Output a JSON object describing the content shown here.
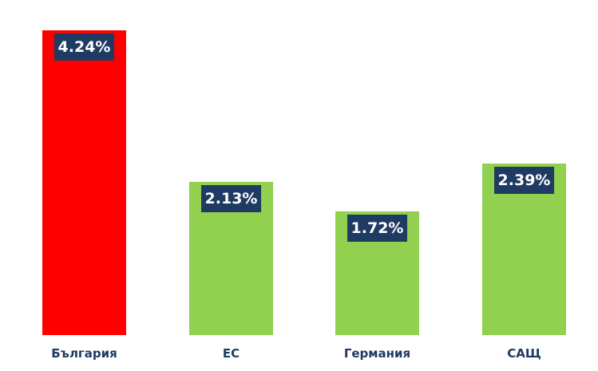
{
  "chart_data": {
    "type": "bar",
    "categories": [
      "България",
      "ЕС",
      "Германия",
      "САЩ"
    ],
    "values": [
      4.24,
      2.13,
      1.72,
      2.39
    ],
    "data_labels": [
      "4.24%",
      "2.13%",
      "1.72%",
      "2.39%"
    ],
    "colors": [
      "#FF0000",
      "#92D050",
      "#92D050",
      "#92D050"
    ],
    "label_box_color": "#1F3A63",
    "title": "",
    "xlabel": "",
    "ylabel": "",
    "ylim": [
      0,
      4.24
    ],
    "grid": false,
    "legend": "none"
  }
}
